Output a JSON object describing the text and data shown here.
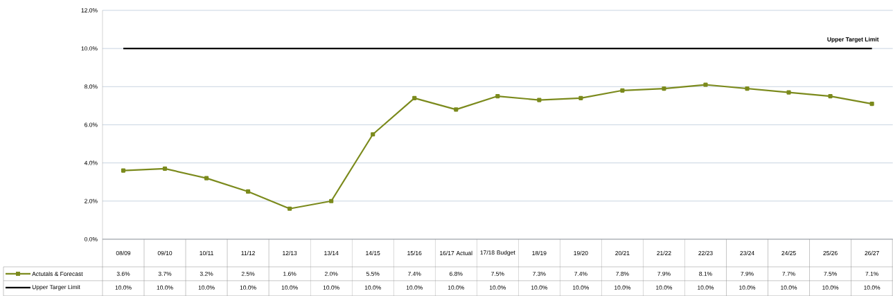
{
  "chart_data": {
    "type": "line",
    "categories": [
      "08/09",
      "09/10",
      "10/11",
      "11/12",
      "12/13",
      "13/14",
      "14/15",
      "15/16",
      "16/17 Actual",
      "17/18 Budget",
      "18/19",
      "19/20",
      "20/21",
      "21/22",
      "22/23",
      "23/24",
      "24/25",
      "25/26",
      "26/27"
    ],
    "ylim": [
      0,
      12
    ],
    "yticks": [
      {
        "value": 0,
        "label": "0.0%"
      },
      {
        "value": 2,
        "label": "2.0%"
      },
      {
        "value": 4,
        "label": "4.0%"
      },
      {
        "value": 6,
        "label": "6.0%"
      },
      {
        "value": 8,
        "label": "8.0%"
      },
      {
        "value": 10,
        "label": "10.0%"
      },
      {
        "value": 12,
        "label": "12.0%"
      }
    ],
    "grid": "y",
    "legend": "bottom left",
    "marker": "square",
    "line_style": "solid",
    "series": [
      {
        "name": "Actutals & Forecast",
        "color": "#7b8a1c",
        "values": [
          3.6,
          3.7,
          3.2,
          2.5,
          1.6,
          2.0,
          5.5,
          7.4,
          6.8,
          7.5,
          7.3,
          7.4,
          7.8,
          7.9,
          8.1,
          7.9,
          7.7,
          7.5,
          7.1
        ],
        "value_labels": [
          "3.6%",
          "3.7%",
          "3.2%",
          "2.5%",
          "1.6%",
          "2.0%",
          "5.5%",
          "7.4%",
          "6.8%",
          "7.5%",
          "7.3%",
          "7.4%",
          "7.8%",
          "7.9%",
          "8.1%",
          "7.9%",
          "7.7%",
          "7.5%",
          "7.1%"
        ]
      },
      {
        "name": "Upper Targer Limit",
        "color": "#000000",
        "marker": "none",
        "values": [
          10,
          10,
          10,
          10,
          10,
          10,
          10,
          10,
          10,
          10,
          10,
          10,
          10,
          10,
          10,
          10,
          10,
          10,
          10
        ],
        "value_labels": [
          "10.0%",
          "10.0%",
          "10.0%",
          "10.0%",
          "10.0%",
          "10.0%",
          "10.0%",
          "10.0%",
          "10.0%",
          "10.0%",
          "10.0%",
          "10.0%",
          "10.0%",
          "10.0%",
          "10.0%",
          "10.0%",
          "10.0%",
          "10.0%",
          "10.0%"
        ]
      }
    ],
    "annotations": [
      "Upper Target Limit"
    ]
  }
}
